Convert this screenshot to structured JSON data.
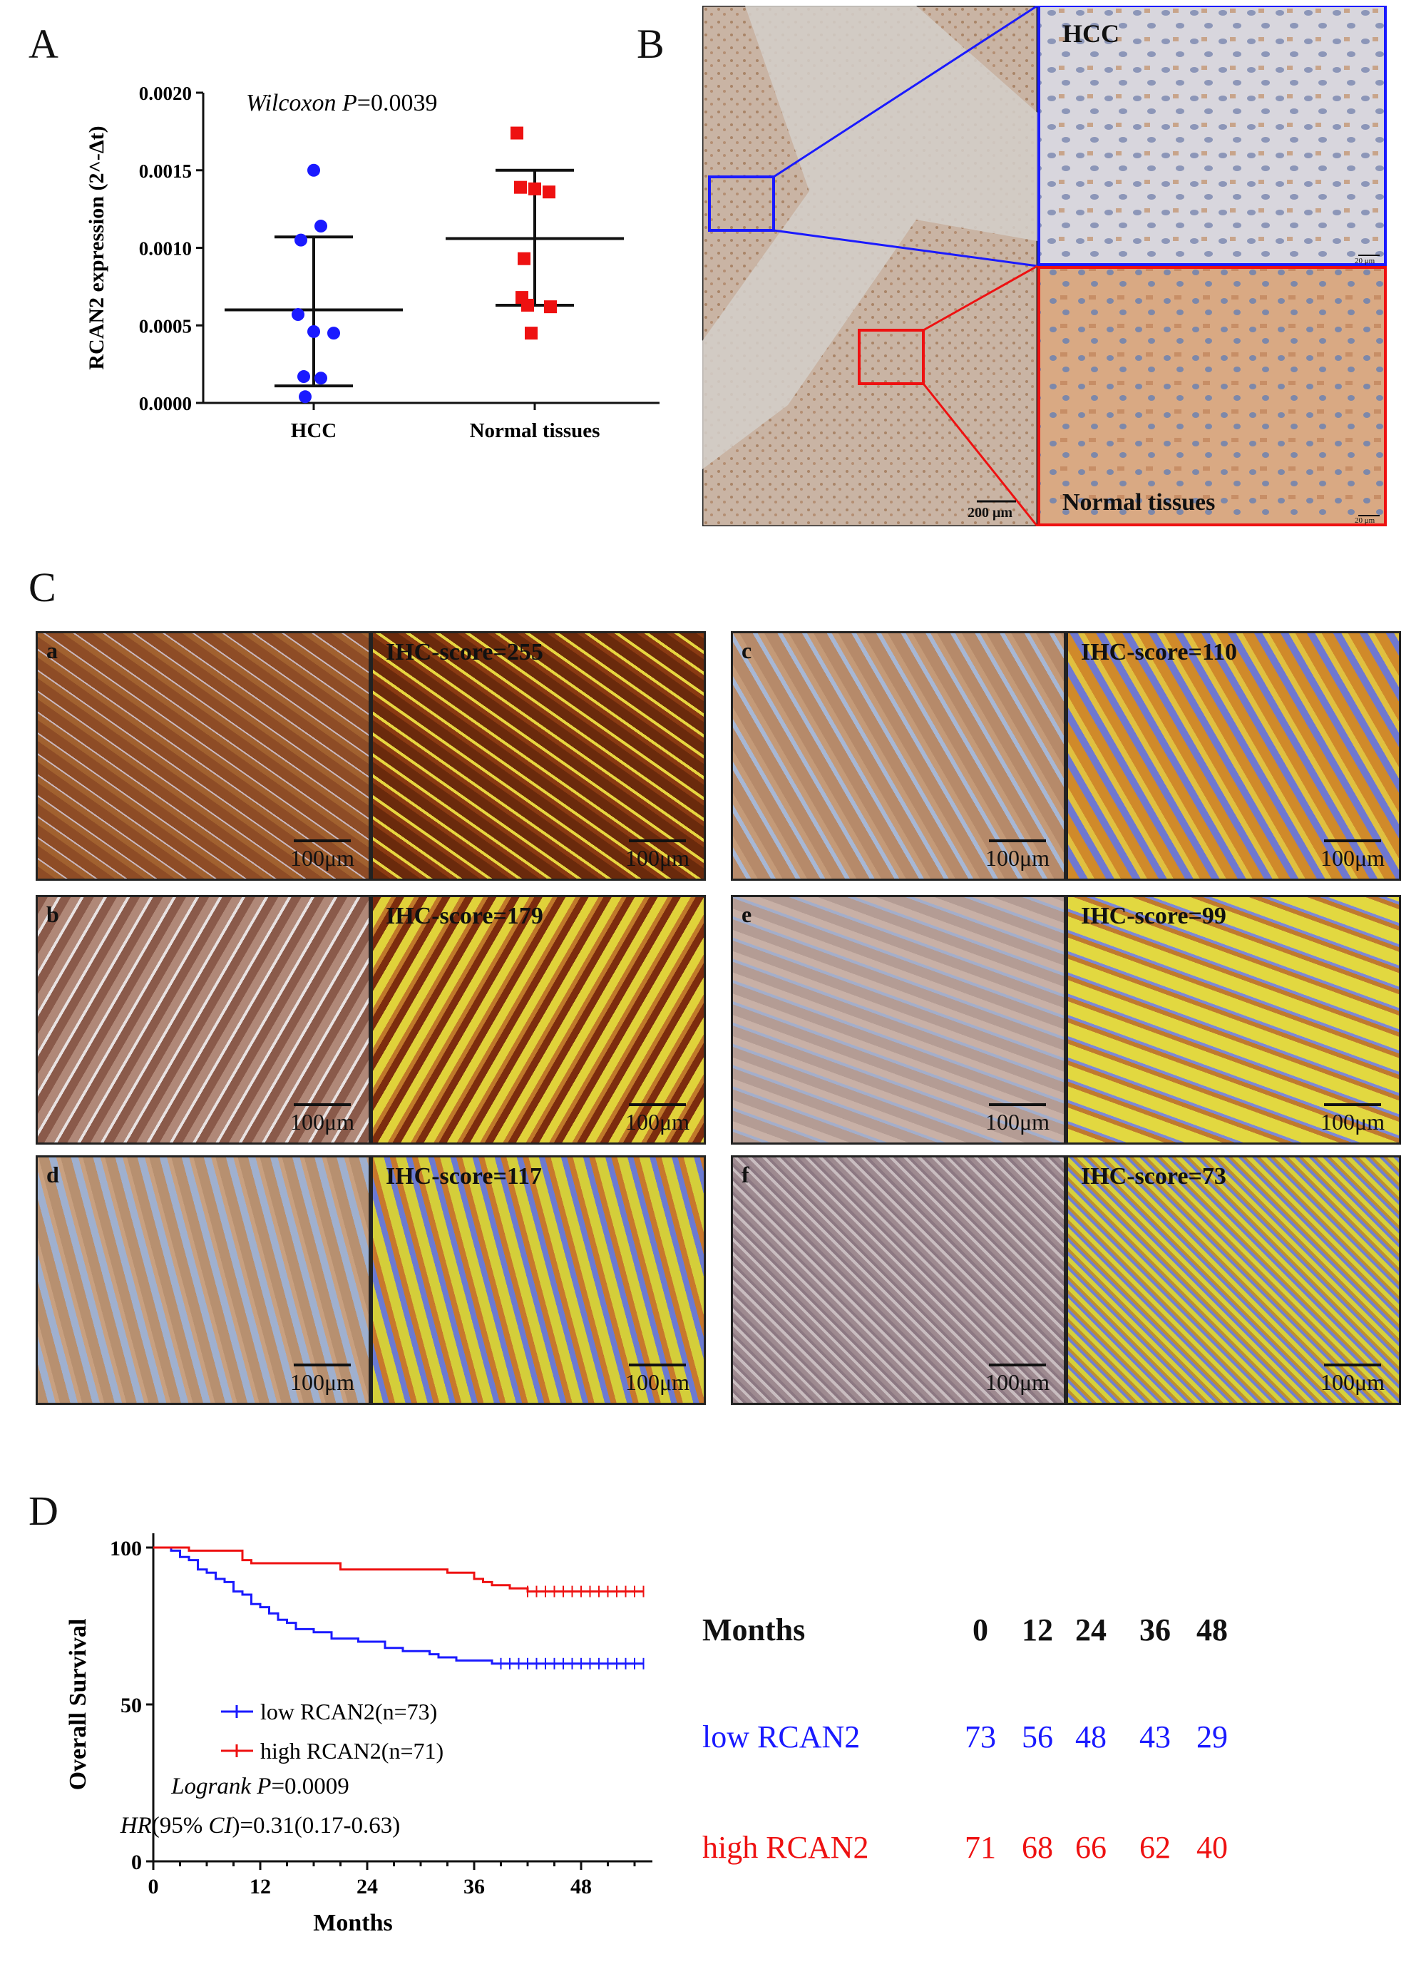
{
  "panels": {
    "A": {
      "letter": "A"
    },
    "B": {
      "letter": "B",
      "hcc_label": "HCC",
      "normal_label": "Normal tissues",
      "scale_main": "200 μm",
      "scale_inset": "20 μm"
    },
    "C": {
      "letter": "C"
    },
    "D": {
      "letter": "D"
    }
  },
  "ihc": [
    {
      "id": "a",
      "score": "IHC-score=255",
      "scale": "100μm"
    },
    {
      "id": "c",
      "score": "IHC-score=110",
      "scale": "100μm"
    },
    {
      "id": "b",
      "score": "IHC-score=179",
      "scale": "100μm"
    },
    {
      "id": "e",
      "score": "IHC-score=99",
      "scale": "100μm"
    },
    {
      "id": "d",
      "score": "IHC-score=117",
      "scale": "100μm"
    },
    {
      "id": "f",
      "score": "IHC-score=73",
      "scale": "100μm"
    }
  ],
  "colors": {
    "blue": "#1a1aff",
    "red": "#ee1111",
    "he_brown": "#b07a55",
    "he_light": "#d9c8bc"
  },
  "chart_data": [
    {
      "type": "scatter",
      "title": "",
      "annotation": "Wilcoxon P=0.0039",
      "annotation_italic": "Wilcoxon P",
      "annotation_value": "=0.0039",
      "ylabel": "RCAN2 expression (2^-Δt)",
      "xlabel": "",
      "categories": [
        "HCC",
        "Normal tissues"
      ],
      "ylim": [
        0,
        0.002
      ],
      "yticks": [
        "0.0000",
        "0.0005",
        "0.0010",
        "0.0015",
        "0.0020"
      ],
      "series": [
        {
          "category": "HCC",
          "color": "#1a1aff",
          "marker": "circle",
          "values": [
            0.0015,
            0.00114,
            0.00105,
            0.00057,
            0.00046,
            0.00045,
            0.00017,
            0.00016,
            4e-05
          ],
          "mean": 0.0006,
          "sd_low": 0.00011,
          "sd_high": 0.00107
        },
        {
          "category": "Normal tissues",
          "color": "#ee1111",
          "marker": "square",
          "values": [
            0.00174,
            0.00139,
            0.00138,
            0.00136,
            0.00093,
            0.00068,
            0.00063,
            0.00062,
            0.00045
          ],
          "mean": 0.00106,
          "sd_low": 0.00063,
          "sd_high": 0.0015
        }
      ]
    },
    {
      "type": "line",
      "subtype": "kaplan-meier",
      "xlabel": "Months",
      "ylabel": "Overall Survival",
      "xlim": [
        0,
        56
      ],
      "ylim": [
        0,
        100
      ],
      "xticks": [
        0,
        12,
        24,
        36,
        48
      ],
      "yticks": [
        0,
        50,
        100
      ],
      "legend_position": "lower-left",
      "series": [
        {
          "name": "low RCAN2(n=73)",
          "color": "#1a1aff",
          "steps": [
            [
              0,
              100
            ],
            [
              2,
              99
            ],
            [
              3,
              97
            ],
            [
              4,
              96
            ],
            [
              5,
              93
            ],
            [
              6,
              92
            ],
            [
              7,
              90
            ],
            [
              8,
              89
            ],
            [
              9,
              86
            ],
            [
              10,
              85
            ],
            [
              11,
              82
            ],
            [
              12,
              81
            ],
            [
              13,
              79
            ],
            [
              14,
              77
            ],
            [
              15,
              76
            ],
            [
              16,
              74
            ],
            [
              18,
              73
            ],
            [
              20,
              71
            ],
            [
              23,
              70
            ],
            [
              26,
              68
            ],
            [
              28,
              67
            ],
            [
              31,
              66
            ],
            [
              32,
              65
            ],
            [
              34,
              64
            ],
            [
              38,
              63
            ],
            [
              55,
              63
            ]
          ],
          "censor": [
            39,
            40,
            41,
            42,
            43,
            44,
            45,
            46,
            47,
            48,
            49,
            50,
            51,
            52,
            53,
            54,
            55
          ]
        },
        {
          "name": "high RCAN2(n=71)",
          "color": "#ee1111",
          "steps": [
            [
              0,
              100
            ],
            [
              4,
              99
            ],
            [
              8,
              99
            ],
            [
              10,
              96
            ],
            [
              11,
              95
            ],
            [
              21,
              93
            ],
            [
              33,
              92
            ],
            [
              36,
              90
            ],
            [
              37,
              89
            ],
            [
              38,
              88
            ],
            [
              40,
              87
            ],
            [
              42,
              86
            ],
            [
              55,
              86
            ]
          ],
          "censor": [
            42,
            43,
            44,
            45,
            46,
            47,
            48,
            49,
            50,
            51,
            52,
            53,
            54,
            55
          ]
        }
      ],
      "annotations": [
        "Logrank P=0.0009",
        "HR(95% CI)=0.31(0.17-0.63)"
      ],
      "risk_table": {
        "header": [
          "Months",
          "0",
          "12",
          "24",
          "36",
          "48"
        ],
        "rows": [
          {
            "label": "low RCAN2",
            "color": "#1a1aff",
            "values": [
              "73",
              "56",
              "48",
              "43",
              "29"
            ]
          },
          {
            "label": "high RCAN2",
            "color": "#ee1111",
            "values": [
              "71",
              "68",
              "66",
              "62",
              "40"
            ]
          }
        ]
      }
    }
  ]
}
